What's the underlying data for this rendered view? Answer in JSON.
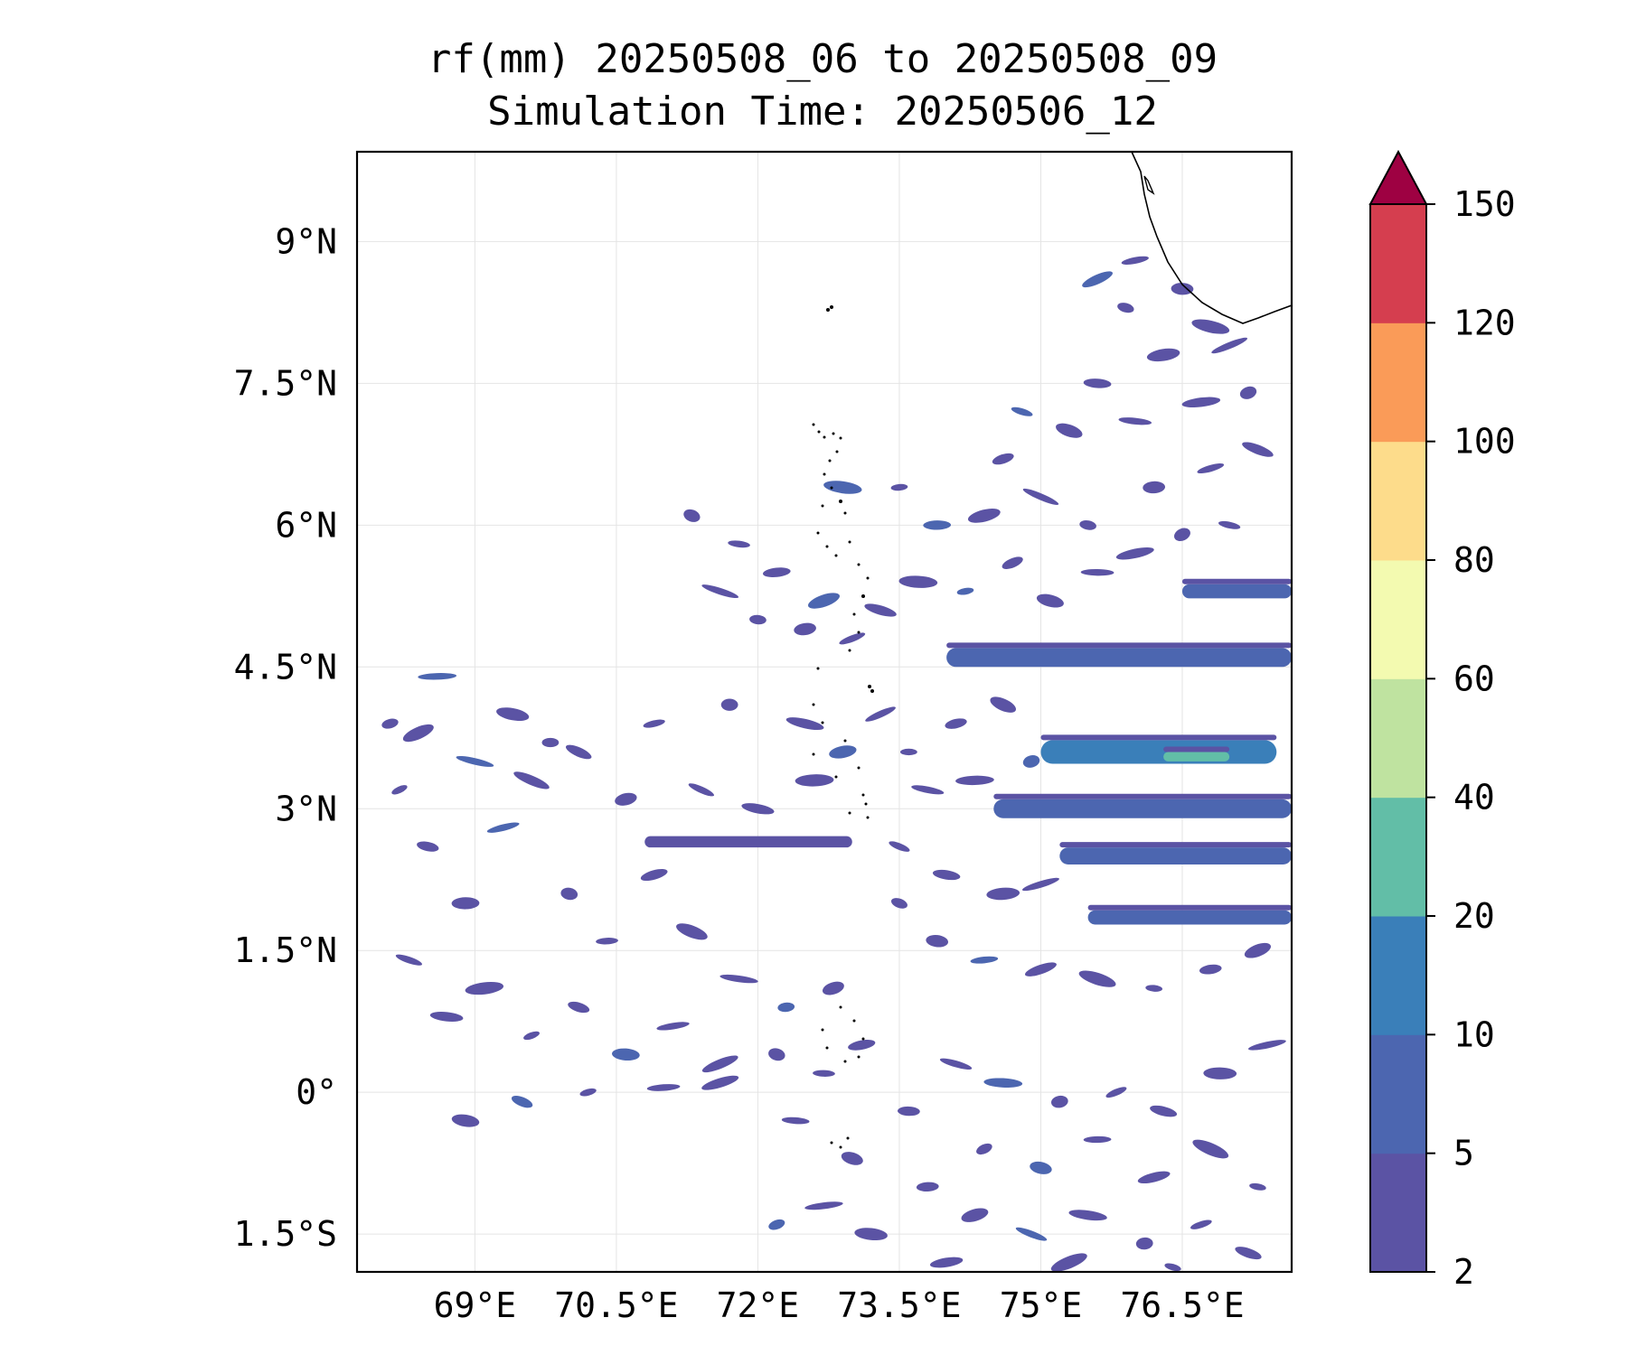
{
  "title": {
    "line1": "rf(mm) 20250508_06 to 20250508_09",
    "line2": "Simulation Time: 20250506_12"
  },
  "map": {
    "lon_range": [
      67.75,
      77.66
    ],
    "lat_range": [
      -1.9,
      9.95
    ],
    "lon_ticks": [
      {
        "value": 69,
        "label": "69°E"
      },
      {
        "value": 70.5,
        "label": "70.5°E"
      },
      {
        "value": 72,
        "label": "72°E"
      },
      {
        "value": 73.5,
        "label": "73.5°E"
      },
      {
        "value": 75,
        "label": "75°E"
      },
      {
        "value": 76.5,
        "label": "76.5°E"
      }
    ],
    "lat_ticks": [
      {
        "value": 9,
        "label": "9°N"
      },
      {
        "value": 7.5,
        "label": "7.5°N"
      },
      {
        "value": 6,
        "label": "6°N"
      },
      {
        "value": 4.5,
        "label": "4.5°N"
      },
      {
        "value": 3,
        "label": "3°N"
      },
      {
        "value": 1.5,
        "label": "1.5°N"
      },
      {
        "value": 0,
        "label": "0°"
      },
      {
        "value": -1.5,
        "label": "1.5°S"
      }
    ],
    "gridlines": true,
    "coastline_color": "#000000"
  },
  "colorbar": {
    "levels": [
      "2",
      "5",
      "10",
      "20",
      "40",
      "60",
      "80",
      "100",
      "120",
      "150"
    ],
    "colors": [
      "#5b53a4",
      "#4c66b0",
      "#3a7fb9",
      "#62bea7",
      "#bfe3a0",
      "#f3fab0",
      "#fddc8b",
      "#fa9b58",
      "#d53e4f",
      "#9e0142"
    ],
    "extend": "max",
    "placement": "right"
  },
  "rain_bands": [
    {
      "lon_start": 74.0,
      "lon_end": 77.66,
      "lat": 4.6,
      "level": 1,
      "thickness": 0.2
    },
    {
      "lon_start": 75.0,
      "lon_end": 77.5,
      "lat": 3.6,
      "level": 2,
      "thickness": 0.25
    },
    {
      "lon_start": 76.3,
      "lon_end": 77.0,
      "lat": 3.55,
      "level": 3,
      "thickness": 0.1
    },
    {
      "lon_start": 74.5,
      "lon_end": 77.66,
      "lat": 3.0,
      "level": 1,
      "thickness": 0.2
    },
    {
      "lon_start": 75.2,
      "lon_end": 77.66,
      "lat": 2.5,
      "level": 1,
      "thickness": 0.18
    },
    {
      "lon_start": 75.5,
      "lon_end": 77.66,
      "lat": 1.85,
      "level": 1,
      "thickness": 0.15
    },
    {
      "lon_start": 70.8,
      "lon_end": 73.0,
      "lat": 2.65,
      "level": 0,
      "thickness": 0.12
    },
    {
      "lon_start": 76.5,
      "lon_end": 77.66,
      "lat": 5.3,
      "level": 1,
      "thickness": 0.15
    }
  ],
  "rain_cells": [
    [
      68.2,
      3.2
    ],
    [
      68.5,
      2.6
    ],
    [
      68.9,
      2.0
    ],
    [
      69.3,
      2.8
    ],
    [
      69.6,
      3.3
    ],
    [
      70.0,
      2.1
    ],
    [
      70.4,
      1.6
    ],
    [
      70.9,
      2.3
    ],
    [
      71.3,
      1.7
    ],
    [
      71.8,
      1.2
    ],
    [
      72.3,
      0.9
    ],
    [
      72.8,
      1.1
    ],
    [
      68.3,
      1.4
    ],
    [
      68.7,
      0.8
    ],
    [
      69.1,
      1.1
    ],
    [
      69.6,
      0.6
    ],
    [
      70.1,
      0.9
    ],
    [
      70.6,
      0.4
    ],
    [
      71.1,
      0.7
    ],
    [
      71.6,
      0.3
    ],
    [
      72.2,
      0.4
    ],
    [
      72.7,
      0.2
    ],
    [
      73.1,
      0.5
    ],
    [
      68.4,
      3.8
    ],
    [
      69.0,
      3.5
    ],
    [
      69.8,
      3.7
    ],
    [
      70.6,
      3.1
    ],
    [
      71.4,
      3.2
    ],
    [
      72.0,
      3.0
    ],
    [
      72.6,
      3.3
    ],
    [
      70.2,
      0.0
    ],
    [
      69.5,
      -0.1
    ],
    [
      68.9,
      -0.3
    ],
    [
      71.0,
      0.05
    ],
    [
      71.6,
      0.1
    ],
    [
      71.3,
      6.1
    ],
    [
      71.8,
      5.8
    ],
    [
      72.2,
      5.5
    ],
    [
      72.7,
      5.2
    ],
    [
      71.6,
      5.3
    ],
    [
      72.0,
      5.0
    ],
    [
      72.5,
      4.9
    ],
    [
      73.0,
      4.8
    ],
    [
      73.3,
      5.1
    ],
    [
      73.7,
      5.4
    ],
    [
      74.2,
      5.3
    ],
    [
      74.7,
      5.6
    ],
    [
      75.1,
      5.2
    ],
    [
      75.6,
      5.5
    ],
    [
      76.0,
      5.7
    ],
    [
      76.5,
      5.9
    ],
    [
      77.0,
      6.0
    ],
    [
      73.9,
      6.0
    ],
    [
      74.4,
      6.1
    ],
    [
      75.0,
      6.3
    ],
    [
      75.5,
      6.0
    ],
    [
      76.2,
      6.4
    ],
    [
      76.8,
      6.6
    ],
    [
      77.3,
      6.8
    ],
    [
      72.9,
      6.4
    ],
    [
      73.5,
      6.4
    ],
    [
      74.6,
      6.7
    ],
    [
      75.3,
      7.0
    ],
    [
      76.0,
      7.1
    ],
    [
      76.7,
      7.3
    ],
    [
      77.2,
      7.4
    ],
    [
      74.8,
      7.2
    ],
    [
      75.6,
      7.5
    ],
    [
      76.3,
      7.8
    ],
    [
      77.0,
      7.9
    ],
    [
      75.9,
      8.3
    ],
    [
      76.5,
      8.5
    ],
    [
      76.0,
      8.8
    ],
    [
      75.6,
      8.6
    ],
    [
      76.8,
      8.1
    ],
    [
      73.6,
      3.6
    ],
    [
      74.1,
      3.9
    ],
    [
      74.6,
      4.1
    ],
    [
      73.8,
      3.2
    ],
    [
      74.3,
      3.3
    ],
    [
      74.9,
      3.5
    ],
    [
      73.5,
      2.6
    ],
    [
      74.0,
      2.3
    ],
    [
      74.6,
      2.1
    ],
    [
      75.0,
      2.2
    ],
    [
      73.5,
      2.0
    ],
    [
      73.9,
      1.6
    ],
    [
      74.4,
      1.4
    ],
    [
      75.0,
      1.3
    ],
    [
      75.6,
      1.2
    ],
    [
      76.2,
      1.1
    ],
    [
      76.8,
      1.3
    ],
    [
      77.3,
      1.5
    ],
    [
      74.1,
      0.3
    ],
    [
      74.6,
      0.1
    ],
    [
      75.2,
      -0.1
    ],
    [
      75.8,
      0.0
    ],
    [
      76.3,
      -0.2
    ],
    [
      76.9,
      0.2
    ],
    [
      77.4,
      0.5
    ],
    [
      74.4,
      -0.6
    ],
    [
      75.0,
      -0.8
    ],
    [
      75.6,
      -0.5
    ],
    [
      76.2,
      -0.9
    ],
    [
      76.8,
      -0.6
    ],
    [
      77.3,
      -1.0
    ],
    [
      73.8,
      -1.0
    ],
    [
      74.3,
      -1.3
    ],
    [
      74.9,
      -1.5
    ],
    [
      75.5,
      -1.3
    ],
    [
      76.1,
      -1.6
    ],
    [
      76.7,
      -1.4
    ],
    [
      77.2,
      -1.7
    ],
    [
      73.2,
      -1.5
    ],
    [
      72.7,
      -1.2
    ],
    [
      72.2,
      -1.4
    ],
    [
      73.0,
      -0.7
    ],
    [
      72.4,
      -0.3
    ],
    [
      74.0,
      -1.8
    ],
    [
      75.3,
      -1.8
    ],
    [
      76.4,
      -1.85
    ],
    [
      73.6,
      -0.2
    ],
    [
      72.9,
      3.6
    ],
    [
      73.3,
      4.0
    ],
    [
      72.5,
      3.9
    ],
    [
      71.7,
      4.1
    ],
    [
      70.9,
      3.9
    ],
    [
      70.1,
      3.6
    ],
    [
      69.4,
      4.0
    ],
    [
      68.6,
      4.4
    ],
    [
      68.1,
      3.9
    ]
  ]
}
